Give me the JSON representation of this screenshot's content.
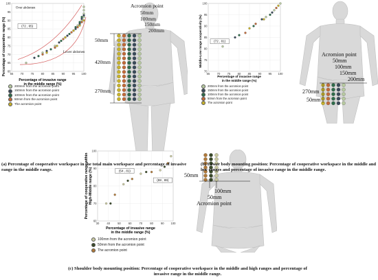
{
  "panels": [
    {
      "id": "a",
      "caption": "(a) Percentage of cooperative workspace in the total main workspace and percentage of invasive range in the middle range.",
      "chart_data": {
        "type": "scatter",
        "xlabel": "Percentage of invasive range in the middle range (%)",
        "ylabel": "Percentage of cooperative range (%)",
        "xlim": [
          65,
          100
        ],
        "ylim": [
          60,
          100
        ],
        "xticks": [
          65,
          70,
          75,
          80,
          85,
          90,
          95,
          100
        ],
        "yticks": [
          60,
          65,
          70,
          75,
          80,
          85,
          90,
          95,
          100
        ],
        "annotations": [
          {
            "text": "Over abdomen",
            "x": 73,
            "y": 97
          },
          {
            "text": "Lower abdomen",
            "x": 96,
            "y": 71
          },
          {
            "text": "(72 , 65)",
            "x": 68,
            "y": 86
          }
        ],
        "series": [
          {
            "name": "200mm from the acromion point",
            "color": "#b7c9a0",
            "points": [
              [
                72,
                65
              ],
              [
                80,
                71
              ],
              [
                86,
                75
              ],
              [
                91,
                80
              ],
              [
                95,
                84
              ],
              [
                97,
                87
              ],
              [
                99,
                90
              ],
              [
                100,
                92
              ],
              [
                100,
                94
              ],
              [
                100,
                96
              ],
              [
                100,
                98
              ]
            ]
          },
          {
            "name": "150mm from the acromion point",
            "color": "#3a4a5a",
            "points": [
              [
                76,
                68
              ],
              [
                82,
                72
              ],
              [
                88,
                77
              ],
              [
                92,
                81
              ],
              [
                96,
                85
              ],
              [
                98,
                88
              ],
              [
                99,
                91
              ],
              [
                100,
                93
              ]
            ]
          },
          {
            "name": "100mm from the acromion point",
            "color": "#2e6b4a",
            "points": [
              [
                78,
                69
              ],
              [
                84,
                73
              ],
              [
                89,
                78
              ],
              [
                93,
                82
              ],
              [
                96,
                86
              ],
              [
                98,
                89
              ],
              [
                99,
                92
              ]
            ]
          },
          {
            "name": "50mm from the acromion point",
            "color": "#c06a3a",
            "points": [
              [
                80,
                70
              ],
              [
                86,
                74
              ],
              [
                90,
                79
              ],
              [
                94,
                83
              ],
              [
                97,
                86
              ],
              [
                99,
                89
              ]
            ]
          },
          {
            "name": "The acromion point",
            "color": "#c7b22c",
            "points": [
              [
                82,
                71
              ],
              [
                87,
                75
              ],
              [
                91,
                80
              ],
              [
                95,
                84
              ],
              [
                98,
                87
              ],
              [
                100,
                90
              ]
            ]
          }
        ]
      },
      "figure_labels": {
        "acromion": "Acromion point",
        "d50": "50mm",
        "d100": "100mm",
        "d150": "150mm",
        "d200": "200mm",
        "left50": "50mm",
        "left420": "420mm",
        "left270": "270mm"
      }
    },
    {
      "id": "b",
      "caption": "(b) Lower body mounting position: Percentage of cooperative workspace in the middle and low ranges and percentage of invasive range in the middle range.",
      "chart_data": {
        "type": "scatter",
        "xlabel": "Percentage of invasive range in the middle range (%)",
        "ylabel": "Middle-Low range cooperativity (%)",
        "xlim": [
          65,
          100
        ],
        "ylim": [
          70,
          100
        ],
        "xticks": [
          65,
          70,
          75,
          80,
          85,
          90,
          95,
          100
        ],
        "yticks": [
          70,
          75,
          80,
          85,
          90,
          95,
          100
        ],
        "annotations": [
          {
            "text": "(72 , 81)",
            "x": 72,
            "y": 81
          }
        ],
        "series": [
          {
            "name": "200mm from the acromion point",
            "color": "#b7c9a0",
            "points": [
              [
                72,
                81
              ],
              [
                93,
                94
              ],
              [
                97,
                97
              ],
              [
                100,
                100
              ]
            ]
          },
          {
            "name": "150mm from the acromion point",
            "color": "#3a4a5a",
            "points": [
              [
                78,
                85
              ],
              [
                91,
                93
              ],
              [
                96,
                96
              ]
            ]
          },
          {
            "name": "100mm from the acromion point",
            "color": "#2e6b4a",
            "points": [
              [
                80,
                86
              ],
              [
                87,
                90
              ],
              [
                95,
                95
              ]
            ]
          },
          {
            "name": "50mm from the acromion point",
            "color": "#c06a3a",
            "points": [
              [
                83,
                87
              ],
              [
                88,
                91
              ],
              [
                98,
                98
              ]
            ]
          },
          {
            "name": "The acromion point",
            "color": "#c7b22c",
            "points": [
              [
                85,
                89
              ],
              [
                92,
                93
              ],
              [
                99,
                99
              ]
            ]
          }
        ]
      },
      "figure_labels": {
        "acromion": "Acromion point",
        "d50": "50mm",
        "d100": "100mm",
        "d150": "150mm",
        "d200": "200mm",
        "left270": "270mm",
        "left50": "50mm"
      }
    },
    {
      "id": "c",
      "caption": "(c) Shoulder body mounting position: Percentage of cooperative workspace in the middle and high ranges and percentage of invasive range in the middle range.",
      "chart_data": {
        "type": "scatter",
        "xlabel": "Percentage of invasive range in the middle range (%)",
        "ylabel": "Percentage of cooperative range within High-Middle range (%)",
        "xlim": [
          30,
          100
        ],
        "ylim": [
          60,
          100
        ],
        "xticks": [
          30,
          40,
          50,
          60,
          70,
          80,
          90,
          100
        ],
        "yticks": [
          60,
          70,
          80,
          90,
          100
        ],
        "annotations": [
          {
            "text": "(54 , 81)",
            "x": 54,
            "y": 81
          },
          {
            "text": "(88 , 89)",
            "x": 88,
            "y": 89
          }
        ],
        "series": [
          {
            "name": "100mm from the acromion point",
            "color": "#c9c9a0",
            "points": [
              [
                38,
                70
              ],
              [
                54,
                81
              ],
              [
                70,
                87
              ],
              [
                88,
                89
              ],
              [
                98,
                97
              ]
            ]
          },
          {
            "name": "50mm from the acromion point",
            "color": "#3a4a2a",
            "points": [
              [
                42,
                70
              ],
              [
                58,
                83
              ],
              [
                75,
                88
              ],
              [
                92,
                91
              ]
            ]
          },
          {
            "name": "The acromion point",
            "color": "#b07a3a",
            "points": [
              [
                46,
                75
              ],
              [
                62,
                84
              ],
              [
                80,
                88
              ],
              [
                95,
                93
              ]
            ]
          }
        ]
      },
      "figure_labels": {
        "left50": "50mm",
        "d100": "100mm",
        "d50": "50mm",
        "acromion": "Acromion point"
      }
    }
  ]
}
